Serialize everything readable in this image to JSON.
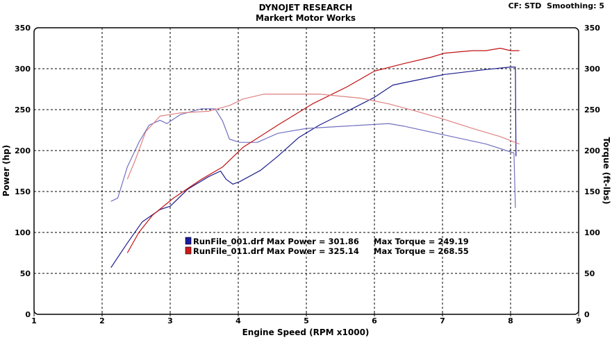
{
  "header": {
    "title": "DYNOJET RESEARCH",
    "subtitle": "Markert Motor Works",
    "settings": "CF: STD  Smoothing: 5"
  },
  "legend": [
    {
      "label": "RunFile_001.drf Max Power = 301.86",
      "torque_label": "Max Torque = 249.19",
      "color": "#1a1aa0"
    },
    {
      "label": "RunFile_011.drf Max Power = 325.14",
      "torque_label": "Max Torque = 268.55",
      "color": "#d01818"
    }
  ],
  "chart_data": {
    "type": "line",
    "title": "DYNOJET RESEARCH",
    "subtitle": "Markert Motor Works",
    "xlabel": "Engine Speed (RPM x1000)",
    "ylabel": "Power (hp)",
    "y2label": "Torque (ft-lbs)",
    "xlim": [
      1,
      9
    ],
    "ylim": [
      0,
      350
    ],
    "y2lim": [
      0,
      350
    ],
    "xticks": [
      "1",
      "2",
      "3",
      "4",
      "5",
      "6",
      "7",
      "8",
      "9"
    ],
    "yticks": [
      "0",
      "50",
      "100",
      "150",
      "200",
      "250",
      "300",
      "350"
    ],
    "grid": true,
    "legend_position": "center",
    "series": [
      {
        "name": "RunFile_001.drf Power",
        "axis": "left",
        "color": "#1a1a8c",
        "x": [
          2.13,
          2.37,
          2.59,
          2.85,
          3.0,
          3.26,
          3.56,
          3.74,
          3.82,
          3.92,
          4.02,
          4.33,
          4.58,
          4.89,
          5.19,
          5.6,
          6.0,
          6.27,
          6.62,
          7.03,
          7.64,
          8.0,
          8.07,
          8.08
        ],
        "y": [
          57,
          87,
          113,
          128,
          132,
          153,
          168,
          175,
          165,
          159,
          162,
          176,
          193,
          216,
          231,
          248,
          265,
          280,
          286,
          293,
          299,
          302,
          302,
          193
        ]
      },
      {
        "name": "RunFile_001.drf Torque",
        "axis": "right",
        "color": "#7070c0",
        "x": [
          2.13,
          2.23,
          2.37,
          2.54,
          2.69,
          2.85,
          2.95,
          3.15,
          3.46,
          3.66,
          3.77,
          3.87,
          4.02,
          4.28,
          4.58,
          5.0,
          5.6,
          6.21,
          6.42,
          7.03,
          7.64,
          8.05,
          8.07
        ],
        "y": [
          138,
          142,
          180,
          210,
          231,
          237,
          233,
          244,
          251,
          251,
          236,
          214,
          210,
          210,
          221,
          227,
          230,
          233,
          230,
          219,
          208,
          197,
          130
        ]
      },
      {
        "name": "RunFile_011.drf Power",
        "axis": "left",
        "color": "#c01010",
        "x": [
          2.37,
          2.54,
          2.74,
          3.05,
          3.46,
          3.77,
          4.07,
          4.58,
          5.09,
          5.6,
          6.0,
          6.42,
          6.83,
          7.03,
          7.44,
          7.64,
          7.85,
          8.0,
          8.13
        ],
        "y": [
          75,
          100,
          121,
          142,
          165,
          180,
          204,
          231,
          257,
          278,
          297,
          306,
          314,
          319,
          322,
          322,
          325,
          322,
          322
        ]
      },
      {
        "name": "RunFile_011.drf Torque",
        "axis": "right",
        "color": "#e08080",
        "x": [
          2.37,
          2.49,
          2.64,
          2.85,
          3.15,
          3.56,
          3.87,
          4.07,
          4.38,
          4.79,
          5.19,
          5.8,
          6.21,
          6.62,
          7.03,
          7.44,
          7.85,
          8.13
        ],
        "y": [
          165,
          189,
          223,
          242,
          246,
          248,
          255,
          263,
          269,
          269,
          269,
          264,
          257,
          248,
          238,
          227,
          217,
          208
        ]
      }
    ]
  }
}
